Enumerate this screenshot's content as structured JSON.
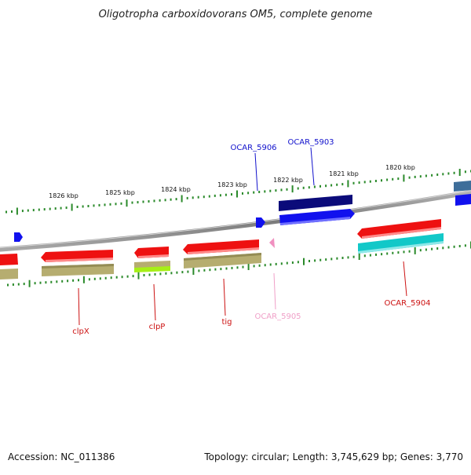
{
  "title": "Oligotropha carboxidovorans OM5, complete genome",
  "footer": {
    "accession": "Accession: NC_011386",
    "topology": "Topology: circular; Length: 3,745,629 bp; Genes: 3,770"
  },
  "colors": {
    "red": "#ee1111",
    "blue": "#1111ee",
    "navy": "#0b0b7a",
    "olive": "#b6ad70",
    "lime": "#a6f016",
    "cyan": "#12c8c8",
    "steel": "#3e6e9a",
    "pink": "#f090c0",
    "tick": "#2a8a2a",
    "backbone": "#8a8a8a"
  },
  "ruler": {
    "labels": [
      "1826 kbp",
      "1825 kbp",
      "1824 kbp",
      "1823 kbp",
      "1822 kbp",
      "1821 kbp",
      "1820 kbp"
    ]
  },
  "gene_labels": [
    {
      "id": "ocar5906",
      "text": "OCAR_5906",
      "color": "#1111cc"
    },
    {
      "id": "ocar5903",
      "text": "OCAR_5903",
      "color": "#1111cc"
    },
    {
      "id": "ocar5905",
      "text": "OCAR_5905",
      "color": "#f0a0c8"
    },
    {
      "id": "ocar5904",
      "text": "OCAR_5904",
      "color": "#cc1111"
    },
    {
      "id": "clpx",
      "text": "clpX",
      "color": "#cc1111"
    },
    {
      "id": "clpp",
      "text": "clpP",
      "color": "#cc1111"
    },
    {
      "id": "tig",
      "text": "tig",
      "color": "#cc1111"
    }
  ]
}
